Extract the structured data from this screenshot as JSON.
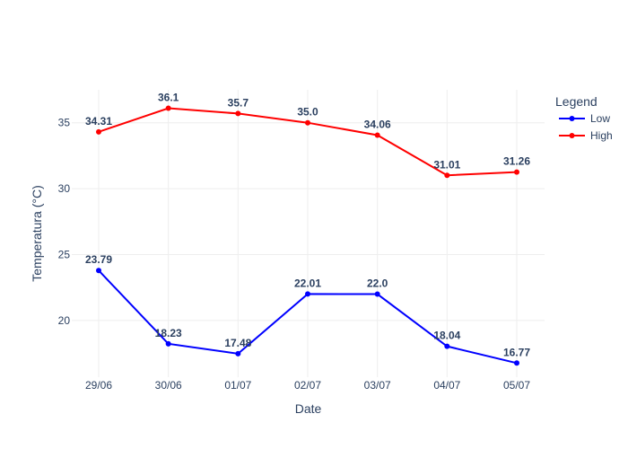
{
  "chart_data": {
    "type": "line",
    "title": "",
    "xlabel": "Date",
    "ylabel": "Temperatura (°C)",
    "categories": [
      "29/06",
      "30/06",
      "01/07",
      "02/07",
      "03/07",
      "04/07",
      "05/07"
    ],
    "ylim": [
      15.7,
      37.5
    ],
    "yticks": [
      20,
      25,
      30,
      35
    ],
    "grid": true,
    "legend": {
      "title": "Legend",
      "placement": "top-right"
    },
    "series": [
      {
        "name": "Low",
        "color": "#0000ff",
        "values": [
          23.79,
          18.23,
          17.48,
          22.01,
          22.0,
          18.04,
          16.77
        ],
        "labels": [
          "23.79",
          "18.23",
          "17.48",
          "22.01",
          "22.0",
          "18.04",
          "16.77"
        ]
      },
      {
        "name": "High",
        "color": "#ff0000",
        "values": [
          34.31,
          36.1,
          35.7,
          35.0,
          34.06,
          31.01,
          31.26
        ],
        "labels": [
          "34.31",
          "36.1",
          "35.7",
          "35.0",
          "34.06",
          "31.01",
          "31.26"
        ]
      }
    ]
  }
}
